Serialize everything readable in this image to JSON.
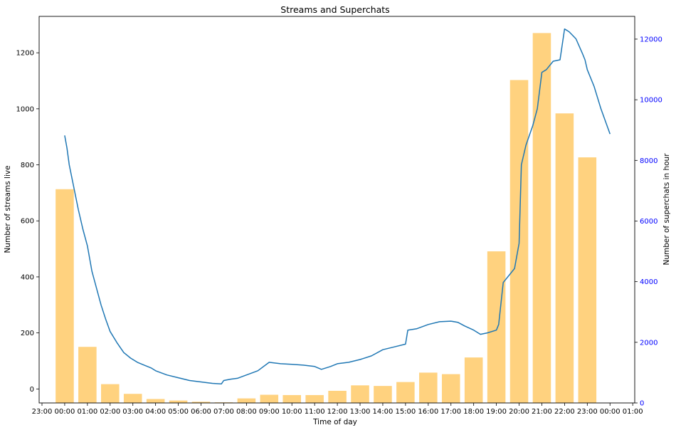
{
  "chart_data": {
    "type": "bar+line",
    "title": "Streams and Superchats",
    "xlabel": "Time of day",
    "ylabel_left": "Number of streams live",
    "ylabel_right": "Number of superchats in hour",
    "x_ticks": [
      "23:00",
      "00:00",
      "01:00",
      "02:00",
      "03:00",
      "04:00",
      "05:00",
      "06:00",
      "07:00",
      "08:00",
      "09:00",
      "10:00",
      "11:00",
      "12:00",
      "13:00",
      "14:00",
      "15:00",
      "16:00",
      "17:00",
      "18:00",
      "19:00",
      "20:00",
      "21:00",
      "22:00",
      "23:00",
      "00:00",
      "01:00"
    ],
    "ylim_left": [
      -50,
      1330
    ],
    "ylim_right": [
      0,
      12750
    ],
    "yticks_left": [
      0,
      200,
      400,
      600,
      800,
      1000,
      1200
    ],
    "yticks_right": [
      0,
      2000,
      4000,
      6000,
      8000,
      10000,
      12000
    ],
    "right_axis_color": "#0000ff",
    "bars": {
      "name": "Superchats",
      "color": "#ffa500",
      "hours": [
        0,
        1,
        2,
        3,
        4,
        5,
        6,
        7,
        8,
        9,
        10,
        11,
        12,
        13,
        14,
        15,
        16,
        17,
        18,
        19,
        20,
        21,
        22,
        23
      ],
      "values": [
        7050,
        1850,
        620,
        300,
        130,
        80,
        40,
        20,
        150,
        270,
        260,
        260,
        400,
        580,
        560,
        690,
        1000,
        950,
        1500,
        5000,
        10650,
        12200,
        9550,
        8100
      ]
    },
    "line": {
      "name": "Streams",
      "color": "#1f77b4",
      "x_hours": [
        0.0,
        0.1,
        0.2,
        0.4,
        0.6,
        0.8,
        1.0,
        1.2,
        1.4,
        1.6,
        1.8,
        2.0,
        2.3,
        2.6,
        2.9,
        3.2,
        3.5,
        3.8,
        4.0,
        4.5,
        5.0,
        5.5,
        6.0,
        6.5,
        6.9,
        7.0,
        7.3,
        7.6,
        8.0,
        8.5,
        9.0,
        9.5,
        10.0,
        10.5,
        11.0,
        11.3,
        11.7,
        12.0,
        12.5,
        13.0,
        13.5,
        14.0,
        14.5,
        15.0,
        15.1,
        15.5,
        16.0,
        16.5,
        17.0,
        17.3,
        17.6,
        18.0,
        18.3,
        18.6,
        19.0,
        19.1,
        19.3,
        19.6,
        19.8,
        20.0,
        20.1,
        20.3,
        20.6,
        20.8,
        21.0,
        21.2,
        21.5,
        21.8,
        22.0,
        22.2,
        22.5,
        22.8,
        22.9,
        23.0,
        23.3,
        23.6,
        24.0
      ],
      "values": [
        905,
        860,
        800,
        720,
        640,
        570,
        510,
        420,
        360,
        300,
        250,
        205,
        165,
        130,
        110,
        95,
        85,
        75,
        65,
        50,
        40,
        30,
        25,
        20,
        18,
        30,
        35,
        38,
        50,
        65,
        95,
        90,
        88,
        85,
        80,
        70,
        80,
        90,
        95,
        105,
        118,
        140,
        150,
        160,
        210,
        215,
        230,
        240,
        242,
        238,
        225,
        210,
        195,
        200,
        210,
        230,
        380,
        410,
        430,
        520,
        800,
        870,
        940,
        1000,
        1130,
        1140,
        1170,
        1175,
        1285,
        1275,
        1250,
        1195,
        1175,
        1140,
        1080,
        1000,
        910
      ]
    }
  }
}
